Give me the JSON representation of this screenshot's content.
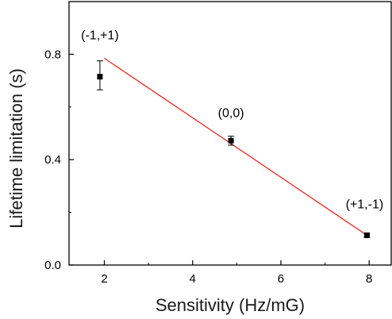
{
  "chart_data": {
    "type": "scatter",
    "title": "",
    "xlabel": "Sensitivity (Hz/mG)",
    "ylabel": "Lifetime limitation (s)",
    "xlim": [
      1.2,
      8.5
    ],
    "ylim": [
      0.0,
      1.0
    ],
    "xticks": [
      2,
      4,
      6,
      8
    ],
    "xtick_labels": [
      "2",
      "4",
      "6",
      "8"
    ],
    "yticks": [
      0.0,
      0.4,
      0.8
    ],
    "ytick_labels": [
      "0.0",
      "0.4",
      "0.8"
    ],
    "grid": false,
    "legend": "none",
    "series": [
      {
        "points": [
          {
            "x": 1.9,
            "y": 0.715,
            "err_low": 0.665,
            "err_high": 0.775,
            "annotation": "(-1,+1)"
          },
          {
            "x": 4.87,
            "y": 0.472,
            "err_low": 0.455,
            "err_high": 0.489,
            "annotation": "(0,0)"
          },
          {
            "x": 7.95,
            "y": 0.113,
            "err_low": 0.105,
            "err_high": 0.121,
            "annotation": "(+1,-1)"
          }
        ],
        "color": "#000000"
      }
    ],
    "fit_line": {
      "x": [
        2.0,
        7.95
      ],
      "y": [
        0.785,
        0.113
      ],
      "color": "#e8221b"
    }
  }
}
